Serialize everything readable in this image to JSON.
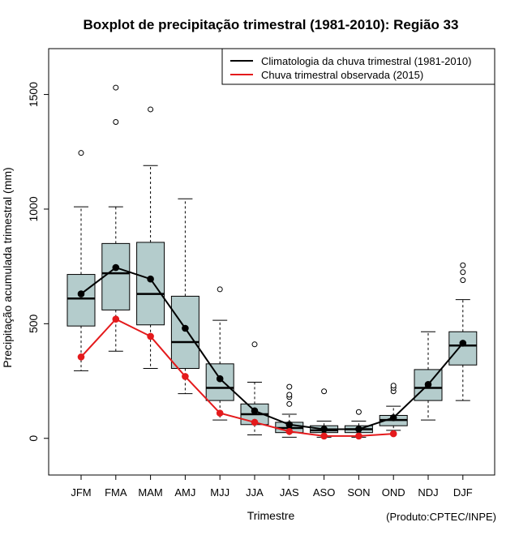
{
  "chart_data": {
    "type": "boxplot",
    "title": "Boxplot de precipitação trimestral (1981-2010): Região 33",
    "xlabel": "Trimestre",
    "ylabel": "Precipitação acumulada trimestral (mm)",
    "ylim": [
      -160,
      1700
    ],
    "yticks": [
      0,
      500,
      1000,
      1500
    ],
    "ytick_labels": [
      "0",
      "500",
      "1000",
      "1500"
    ],
    "source": "(Produto:CPTEC/INPE)",
    "legend": {
      "position": "top-right",
      "entries": [
        {
          "label": "Climatologia da chuva trimestral (1981-2010)",
          "color": "#000000"
        },
        {
          "label": "Chuva trimestral observada (2015)",
          "color": "#e41a1c"
        }
      ]
    },
    "box_color": "#b4cccc",
    "categories": [
      "JFM",
      "FMA",
      "MAM",
      "AMJ",
      "MJJ",
      "JJA",
      "JAS",
      "ASO",
      "SON",
      "OND",
      "NDJ",
      "DJF"
    ],
    "boxes": [
      {
        "low": 295,
        "q1": 490,
        "median": 610,
        "q3": 715,
        "high": 1010,
        "outliers": [
          1245
        ]
      },
      {
        "low": 380,
        "q1": 560,
        "median": 720,
        "q3": 850,
        "high": 1010,
        "outliers": [
          1380,
          1530
        ]
      },
      {
        "low": 305,
        "q1": 495,
        "median": 630,
        "q3": 855,
        "high": 1190,
        "outliers": [
          1435
        ]
      },
      {
        "low": 195,
        "q1": 305,
        "median": 420,
        "q3": 620,
        "high": 1045,
        "outliers": []
      },
      {
        "low": 80,
        "q1": 165,
        "median": 220,
        "q3": 325,
        "high": 515,
        "outliers": [
          650
        ]
      },
      {
        "low": 15,
        "q1": 60,
        "median": 105,
        "q3": 150,
        "high": 245,
        "outliers": [
          410
        ]
      },
      {
        "low": 5,
        "q1": 25,
        "median": 45,
        "q3": 70,
        "high": 105,
        "outliers": [
          150,
          180,
          190,
          225
        ]
      },
      {
        "low": 5,
        "q1": 25,
        "median": 35,
        "q3": 55,
        "high": 75,
        "outliers": [
          205
        ]
      },
      {
        "low": 5,
        "q1": 25,
        "median": 40,
        "q3": 55,
        "high": 75,
        "outliers": [
          115
        ]
      },
      {
        "low": 35,
        "q1": 55,
        "median": 80,
        "q3": 100,
        "high": 140,
        "outliers": [
          205,
          220,
          230
        ]
      },
      {
        "low": 80,
        "q1": 165,
        "median": 220,
        "q3": 300,
        "high": 465,
        "outliers": []
      },
      {
        "low": 165,
        "q1": 320,
        "median": 405,
        "q3": 465,
        "high": 605,
        "outliers": [
          690,
          725,
          755
        ]
      }
    ],
    "series": [
      {
        "name": "Climatologia da chuva trimestral (1981-2010)",
        "color": "#000000",
        "values": [
          630,
          745,
          695,
          480,
          260,
          120,
          60,
          40,
          40,
          90,
          235,
          415
        ]
      },
      {
        "name": "Chuva trimestral observada (2015)",
        "color": "#e41a1c",
        "values": [
          355,
          520,
          445,
          270,
          110,
          70,
          30,
          10,
          10,
          20,
          null,
          null
        ]
      }
    ]
  }
}
